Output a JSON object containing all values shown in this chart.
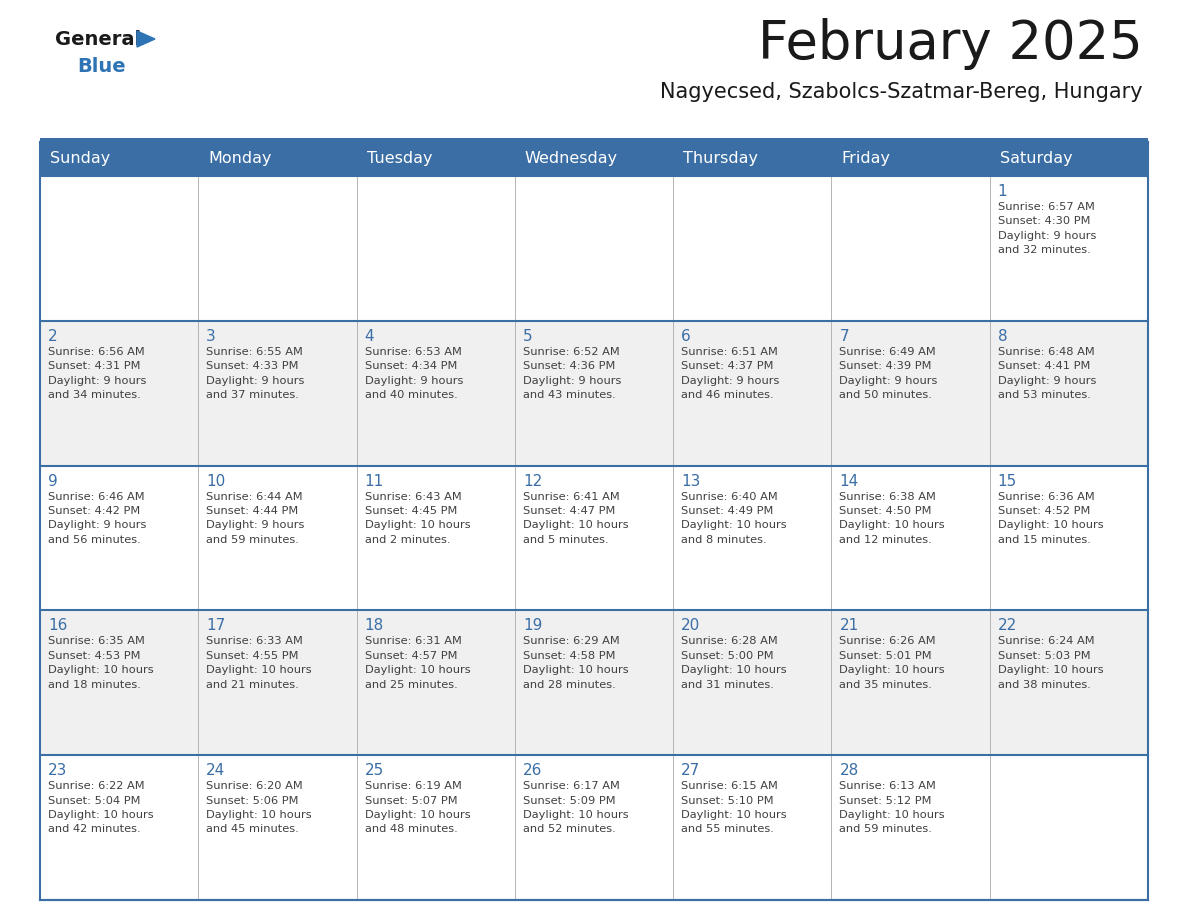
{
  "title": "February 2025",
  "subtitle": "Nagyecsed, Szabolcs-Szatmar-Bereg, Hungary",
  "header_bg_color": "#3a6ea5",
  "header_text_color": "#ffffff",
  "day_names": [
    "Sunday",
    "Monday",
    "Tuesday",
    "Wednesday",
    "Thursday",
    "Friday",
    "Saturday"
  ],
  "bg_color": "#ffffff",
  "cell_bg_even": "#f0f0f0",
  "cell_bg_odd": "#ffffff",
  "title_color": "#1a1a1a",
  "subtitle_color": "#1a1a1a",
  "day_num_color": "#3a6ea5",
  "cell_text_color": "#404040",
  "grid_color": "#aaaaaa",
  "logo_general_color": "#1a1a1a",
  "logo_blue_color": "#2e74b5",
  "weeks": [
    [
      {
        "day": 0,
        "info": ""
      },
      {
        "day": 0,
        "info": ""
      },
      {
        "day": 0,
        "info": ""
      },
      {
        "day": 0,
        "info": ""
      },
      {
        "day": 0,
        "info": ""
      },
      {
        "day": 0,
        "info": ""
      },
      {
        "day": 1,
        "info": "Sunrise: 6:57 AM\nSunset: 4:30 PM\nDaylight: 9 hours\nand 32 minutes."
      }
    ],
    [
      {
        "day": 2,
        "info": "Sunrise: 6:56 AM\nSunset: 4:31 PM\nDaylight: 9 hours\nand 34 minutes."
      },
      {
        "day": 3,
        "info": "Sunrise: 6:55 AM\nSunset: 4:33 PM\nDaylight: 9 hours\nand 37 minutes."
      },
      {
        "day": 4,
        "info": "Sunrise: 6:53 AM\nSunset: 4:34 PM\nDaylight: 9 hours\nand 40 minutes."
      },
      {
        "day": 5,
        "info": "Sunrise: 6:52 AM\nSunset: 4:36 PM\nDaylight: 9 hours\nand 43 minutes."
      },
      {
        "day": 6,
        "info": "Sunrise: 6:51 AM\nSunset: 4:37 PM\nDaylight: 9 hours\nand 46 minutes."
      },
      {
        "day": 7,
        "info": "Sunrise: 6:49 AM\nSunset: 4:39 PM\nDaylight: 9 hours\nand 50 minutes."
      },
      {
        "day": 8,
        "info": "Sunrise: 6:48 AM\nSunset: 4:41 PM\nDaylight: 9 hours\nand 53 minutes."
      }
    ],
    [
      {
        "day": 9,
        "info": "Sunrise: 6:46 AM\nSunset: 4:42 PM\nDaylight: 9 hours\nand 56 minutes."
      },
      {
        "day": 10,
        "info": "Sunrise: 6:44 AM\nSunset: 4:44 PM\nDaylight: 9 hours\nand 59 minutes."
      },
      {
        "day": 11,
        "info": "Sunrise: 6:43 AM\nSunset: 4:45 PM\nDaylight: 10 hours\nand 2 minutes."
      },
      {
        "day": 12,
        "info": "Sunrise: 6:41 AM\nSunset: 4:47 PM\nDaylight: 10 hours\nand 5 minutes."
      },
      {
        "day": 13,
        "info": "Sunrise: 6:40 AM\nSunset: 4:49 PM\nDaylight: 10 hours\nand 8 minutes."
      },
      {
        "day": 14,
        "info": "Sunrise: 6:38 AM\nSunset: 4:50 PM\nDaylight: 10 hours\nand 12 minutes."
      },
      {
        "day": 15,
        "info": "Sunrise: 6:36 AM\nSunset: 4:52 PM\nDaylight: 10 hours\nand 15 minutes."
      }
    ],
    [
      {
        "day": 16,
        "info": "Sunrise: 6:35 AM\nSunset: 4:53 PM\nDaylight: 10 hours\nand 18 minutes."
      },
      {
        "day": 17,
        "info": "Sunrise: 6:33 AM\nSunset: 4:55 PM\nDaylight: 10 hours\nand 21 minutes."
      },
      {
        "day": 18,
        "info": "Sunrise: 6:31 AM\nSunset: 4:57 PM\nDaylight: 10 hours\nand 25 minutes."
      },
      {
        "day": 19,
        "info": "Sunrise: 6:29 AM\nSunset: 4:58 PM\nDaylight: 10 hours\nand 28 minutes."
      },
      {
        "day": 20,
        "info": "Sunrise: 6:28 AM\nSunset: 5:00 PM\nDaylight: 10 hours\nand 31 minutes."
      },
      {
        "day": 21,
        "info": "Sunrise: 6:26 AM\nSunset: 5:01 PM\nDaylight: 10 hours\nand 35 minutes."
      },
      {
        "day": 22,
        "info": "Sunrise: 6:24 AM\nSunset: 5:03 PM\nDaylight: 10 hours\nand 38 minutes."
      }
    ],
    [
      {
        "day": 23,
        "info": "Sunrise: 6:22 AM\nSunset: 5:04 PM\nDaylight: 10 hours\nand 42 minutes."
      },
      {
        "day": 24,
        "info": "Sunrise: 6:20 AM\nSunset: 5:06 PM\nDaylight: 10 hours\nand 45 minutes."
      },
      {
        "day": 25,
        "info": "Sunrise: 6:19 AM\nSunset: 5:07 PM\nDaylight: 10 hours\nand 48 minutes."
      },
      {
        "day": 26,
        "info": "Sunrise: 6:17 AM\nSunset: 5:09 PM\nDaylight: 10 hours\nand 52 minutes."
      },
      {
        "day": 27,
        "info": "Sunrise: 6:15 AM\nSunset: 5:10 PM\nDaylight: 10 hours\nand 55 minutes."
      },
      {
        "day": 28,
        "info": "Sunrise: 6:13 AM\nSunset: 5:12 PM\nDaylight: 10 hours\nand 59 minutes."
      },
      {
        "day": 0,
        "info": ""
      }
    ]
  ]
}
